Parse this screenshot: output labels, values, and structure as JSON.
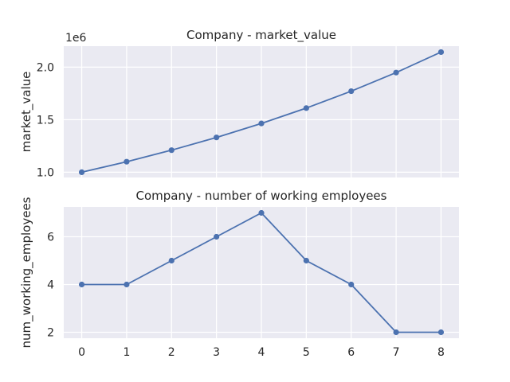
{
  "chart_data": [
    {
      "type": "line",
      "title": "Company - market_value",
      "xlabel": "",
      "ylabel": "market_value",
      "y_offset_label": "1e6",
      "x": [
        0,
        1,
        2,
        3,
        4,
        5,
        6,
        7,
        8
      ],
      "series": [
        {
          "values": [
            1000000,
            1100000,
            1210000,
            1331000,
            1464100,
            1610510,
            1771561,
            1948717,
            2143589
          ]
        }
      ],
      "xlim": [
        -0.4,
        8.4
      ],
      "ylim": [
        950000,
        2200000
      ],
      "yticks": [
        1000000,
        1500000,
        2000000
      ],
      "ytick_labels": [
        "1.0",
        "1.5",
        "2.0"
      ],
      "xticks": [
        0,
        1,
        2,
        3,
        4,
        5,
        6,
        7,
        8
      ],
      "show_xtick_labels": false,
      "grid": true,
      "color": "#4c72b0"
    },
    {
      "type": "line",
      "title": "Company - number of working employees",
      "xlabel": "",
      "ylabel": "num_working_employees",
      "x": [
        0,
        1,
        2,
        3,
        4,
        5,
        6,
        7,
        8
      ],
      "series": [
        {
          "values": [
            4,
            4,
            5,
            6,
            7,
            5,
            4,
            2,
            2
          ]
        }
      ],
      "xlim": [
        -0.4,
        8.4
      ],
      "ylim": [
        1.75,
        7.25
      ],
      "yticks": [
        2,
        4,
        6
      ],
      "ytick_labels": [
        "2",
        "4",
        "6"
      ],
      "xticks": [
        0,
        1,
        2,
        3,
        4,
        5,
        6,
        7,
        8
      ],
      "xtick_labels": [
        "0",
        "1",
        "2",
        "3",
        "4",
        "5",
        "6",
        "7",
        "8"
      ],
      "show_xtick_labels": true,
      "grid": true,
      "color": "#4c72b0"
    }
  ]
}
